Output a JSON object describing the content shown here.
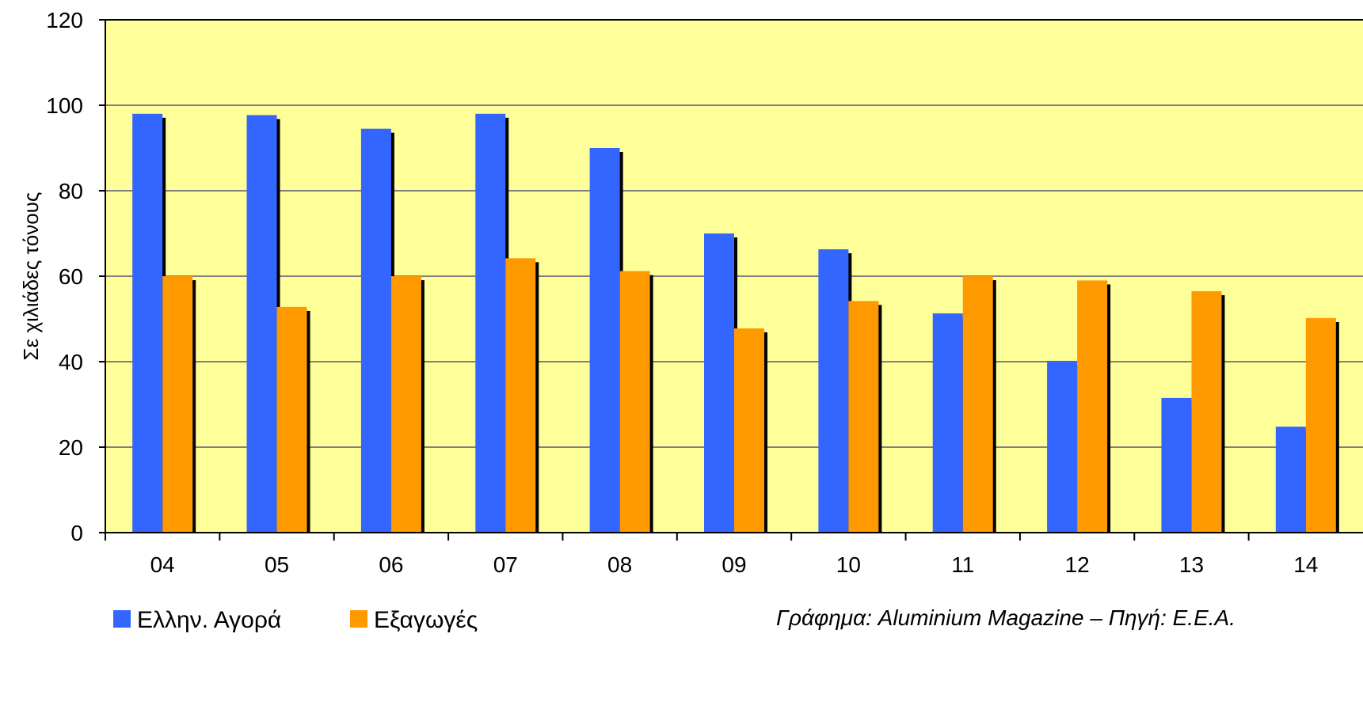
{
  "chart_data": {
    "type": "bar",
    "title": "",
    "xlabel": "",
    "ylabel": "Σε χιλιάδες τόνους",
    "categories": [
      "04",
      "05",
      "06",
      "07",
      "08",
      "09",
      "10",
      "11",
      "12",
      "13",
      "14"
    ],
    "series": [
      {
        "name": "Ελλην. Αγορά",
        "color": "#3366ff",
        "values": [
          98,
          97.7,
          94.5,
          98,
          90,
          70,
          66.3,
          51.3,
          40.2,
          31.5,
          24.8
        ]
      },
      {
        "name": "Εξαγωγές",
        "color": "#ff9900",
        "values": [
          60,
          52.8,
          60,
          64.2,
          61.2,
          47.8,
          54.2,
          60,
          59,
          56.5,
          50.2
        ]
      }
    ],
    "ylim": [
      0,
      120
    ],
    "yticks": [
      0,
      20,
      40,
      60,
      80,
      100,
      120
    ],
    "grid": true,
    "legend_position": "bottom-left",
    "plot_background": "#ffff99",
    "shadow_color": "#000000"
  },
  "credit": "Γράφημα: Aluminium Magazine – Πηγή: Ε.Ε.Α."
}
